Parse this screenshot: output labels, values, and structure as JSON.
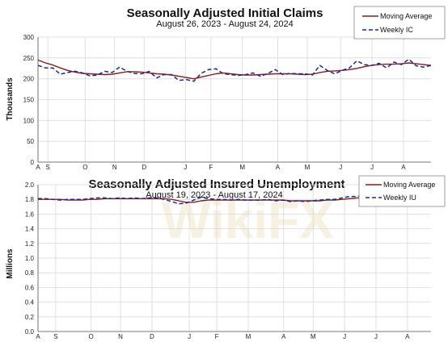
{
  "chart_data": [
    {
      "type": "line",
      "title": "Seasonally Adjusted Initial Claims",
      "subtitle": "August 26, 2023 - August 24, 2024",
      "ylabel": "Thousands",
      "xlabel": "",
      "ylim": [
        0,
        300
      ],
      "yticks": [
        "0",
        "50",
        "100",
        "150",
        "200",
        "250",
        "300"
      ],
      "x_tick_labels": [
        "A",
        "S",
        "O",
        "N",
        "D",
        "J",
        "F",
        "M",
        "A",
        "M",
        "J",
        "J",
        "A"
      ],
      "grid": true,
      "legend_position": "top-right",
      "series": [
        {
          "name": "Moving Average",
          "color": "#8b1a1a",
          "style": "solid",
          "values": [
            245,
            238,
            233,
            226,
            220,
            216,
            213,
            212,
            211,
            210,
            211,
            214,
            217,
            217,
            216,
            214,
            212,
            211,
            209,
            206,
            203,
            200,
            204,
            208,
            212,
            214,
            212,
            210,
            209,
            209,
            210,
            211,
            212,
            212,
            212,
            211,
            210,
            211,
            215,
            218,
            219,
            220,
            222,
            225,
            229,
            232,
            234,
            235,
            235,
            236,
            238,
            236,
            234,
            232
          ]
        },
        {
          "name": "Weekly IC",
          "color": "#1a2a8b",
          "style": "dashed",
          "values": [
            232,
            226,
            226,
            211,
            215,
            218,
            214,
            207,
            209,
            218,
            215,
            228,
            218,
            213,
            212,
            218,
            202,
            210,
            210,
            196,
            198,
            194,
            213,
            222,
            224,
            212,
            210,
            208,
            210,
            214,
            206,
            213,
            222,
            210,
            213,
            212,
            212,
            209,
            232,
            220,
            212,
            220,
            226,
            243,
            234,
            232,
            237,
            226,
            240,
            234,
            247,
            231,
            228,
            232
          ]
        }
      ]
    },
    {
      "type": "line",
      "title": "Seasonally Adjusted Insured Unemployment",
      "subtitle": "August 19, 2023 - August 17, 2024",
      "ylabel": "Millions",
      "xlabel": "",
      "ylim": [
        0,
        2.0
      ],
      "yticks": [
        "0.0",
        "0.2",
        "0.4",
        "0.6",
        "0.8",
        "1.0",
        "1.2",
        "1.4",
        "1.6",
        "1.8",
        "2.0"
      ],
      "x_tick_labels": [
        "A",
        "S",
        "O",
        "N",
        "D",
        "J",
        "F",
        "M",
        "A",
        "M",
        "J",
        "J",
        "A"
      ],
      "grid": true,
      "legend_position": "top-right",
      "series": [
        {
          "name": "Moving Average",
          "color": "#8b1a1a",
          "style": "solid",
          "values": [
            1.8,
            1.8,
            1.8,
            1.8,
            1.79,
            1.79,
            1.79,
            1.8,
            1.8,
            1.81,
            1.81,
            1.81,
            1.81,
            1.81,
            1.81,
            1.81,
            1.81,
            1.81,
            1.8,
            1.78,
            1.76,
            1.76,
            1.78,
            1.79,
            1.79,
            1.79,
            1.79,
            1.79,
            1.79,
            1.79,
            1.79,
            1.79,
            1.79,
            1.79,
            1.78,
            1.78,
            1.78,
            1.78,
            1.78,
            1.79,
            1.79,
            1.8,
            1.81,
            1.82,
            1.83,
            1.84,
            1.85,
            1.86,
            1.86,
            1.86,
            1.86,
            1.86,
            1.86,
            1.86
          ]
        },
        {
          "name": "Weekly IU",
          "color": "#1a2a8b",
          "style": "dashed",
          "values": [
            1.81,
            1.81,
            1.8,
            1.79,
            1.8,
            1.8,
            1.8,
            1.81,
            1.82,
            1.82,
            1.81,
            1.82,
            1.81,
            1.82,
            1.81,
            1.82,
            1.82,
            1.8,
            1.77,
            1.74,
            1.75,
            1.79,
            1.83,
            1.81,
            1.8,
            1.8,
            1.79,
            1.8,
            1.79,
            1.79,
            1.79,
            1.8,
            1.78,
            1.79,
            1.77,
            1.78,
            1.77,
            1.78,
            1.79,
            1.8,
            1.8,
            1.82,
            1.84,
            1.84,
            1.86,
            1.86,
            1.86,
            1.86,
            1.87,
            1.86,
            1.87,
            1.86,
            1.86,
            1.87
          ]
        }
      ]
    }
  ],
  "watermark": "WikiFX"
}
